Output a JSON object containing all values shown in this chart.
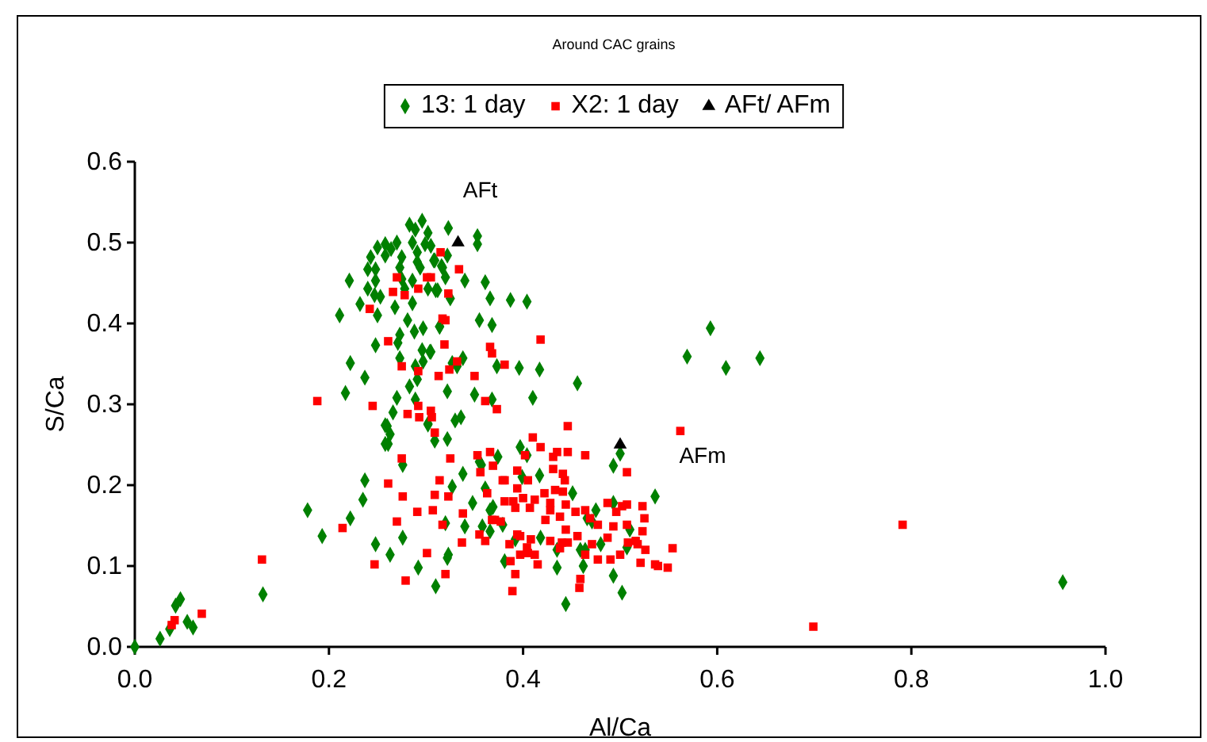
{
  "chart_data": {
    "type": "scatter",
    "title": "Around CAC grains",
    "xlabel": "Al/Ca",
    "ylabel": "S/Ca",
    "legend": "top",
    "grid": false,
    "xlim": [
      0,
      1
    ],
    "ylim": [
      0,
      0.6
    ],
    "xticks": [
      {
        "value": 0,
        "label": "0.0"
      },
      {
        "value": 0.2,
        "label": "0.2"
      },
      {
        "value": 0.4,
        "label": "0.4"
      },
      {
        "value": 0.6,
        "label": "0.6"
      },
      {
        "value": 0.8,
        "label": "0.8"
      },
      {
        "value": 1,
        "label": "1.0"
      }
    ],
    "yticks": [
      {
        "value": 0,
        "label": "0.0"
      },
      {
        "value": 0.1,
        "label": "0.1"
      },
      {
        "value": 0.2,
        "label": "0.2"
      },
      {
        "value": 0.3,
        "label": "0.3"
      },
      {
        "value": 0.4,
        "label": "0.4"
      },
      {
        "value": 0.5,
        "label": "0.5"
      },
      {
        "value": 0.6,
        "label": "0.6"
      }
    ],
    "annotations": [
      {
        "text": "AFt",
        "x": 0.333,
        "y": 0.5
      },
      {
        "text": "AFm",
        "x": 0.5,
        "y": 0.25
      }
    ],
    "series": [
      {
        "name": "13: 1 day",
        "color": "#008000",
        "marker": "diamond",
        "x": [
          0.296,
          0.283,
          0.289,
          0.302,
          0.27,
          0.286,
          0.299,
          0.258,
          0.25,
          0.264,
          0.291,
          0.243,
          0.258,
          0.275,
          0.308,
          0.291,
          0.273,
          0.24,
          0.248,
          0.294,
          0.316,
          0.275,
          0.286,
          0.248,
          0.221,
          0.278,
          0.24,
          0.302,
          0.31,
          0.247,
          0.253,
          0.286,
          0.232,
          0.25,
          0.268,
          0.211,
          0.281,
          0.297,
          0.314,
          0.288,
          0.273,
          0.271,
          0.248,
          0.296,
          0.304,
          0.273,
          0.297,
          0.222,
          0.289,
          0.237,
          0.291,
          0.283,
          0.217,
          0.27,
          0.289,
          0.266,
          0.258,
          0.302,
          0.323,
          0.353,
          0.353,
          0.305,
          0.322,
          0.309,
          0.317,
          0.32,
          0.34,
          0.312,
          0.361,
          0.366,
          0.387,
          0.404,
          0.325,
          0.355,
          0.314,
          0.368,
          0.593,
          0.569,
          0.609,
          0.644,
          0.305,
          0.338,
          0.327,
          0.332,
          0.373,
          0.396,
          0.417,
          0.456,
          0.322,
          0.35,
          0.368,
          0.41,
          0.33,
          0.336,
          0.956,
          0,
          0.026,
          0.036,
          0.042,
          0.047,
          0.054,
          0.06,
          0.132,
          0.178,
          0.193,
          0.222,
          0.235,
          0.237,
          0.248,
          0.263,
          0.276,
          0.292,
          0.31,
          0.276,
          0.258,
          0.261,
          0.263,
          0.26,
          0.302,
          0.309,
          0.322,
          0.397,
          0.404,
          0.355,
          0.357,
          0.374,
          0.5,
          0.493,
          0.338,
          0.399,
          0.417,
          0.327,
          0.361,
          0.451,
          0.536,
          0.348,
          0.366,
          0.369,
          0.475,
          0.493,
          0.32,
          0.34,
          0.358,
          0.379,
          0.466,
          0.471,
          0.51,
          0.366,
          0.392,
          0.418,
          0.48,
          0.507,
          0.435,
          0.459,
          0.464,
          0.323,
          0.322,
          0.381,
          0.435,
          0.462,
          0.493,
          0.502,
          0.444
        ],
        "values": [
          0.527,
          0.522,
          0.516,
          0.512,
          0.5,
          0.5,
          0.498,
          0.498,
          0.494,
          0.492,
          0.488,
          0.482,
          0.484,
          0.482,
          0.478,
          0.476,
          0.469,
          0.467,
          0.467,
          0.469,
          0.471,
          0.455,
          0.453,
          0.453,
          0.453,
          0.443,
          0.443,
          0.443,
          0.441,
          0.435,
          0.433,
          0.425,
          0.424,
          0.41,
          0.42,
          0.41,
          0.404,
          0.394,
          0.396,
          0.39,
          0.386,
          0.376,
          0.373,
          0.367,
          0.365,
          0.357,
          0.353,
          0.351,
          0.347,
          0.333,
          0.331,
          0.322,
          0.314,
          0.308,
          0.306,
          0.29,
          0.274,
          0.276,
          0.518,
          0.508,
          0.498,
          0.496,
          0.484,
          0.478,
          0.469,
          0.457,
          0.453,
          0.441,
          0.451,
          0.431,
          0.429,
          0.427,
          0.431,
          0.404,
          0.396,
          0.398,
          0.394,
          0.359,
          0.345,
          0.357,
          0.365,
          0.357,
          0.351,
          0.347,
          0.347,
          0.345,
          0.343,
          0.326,
          0.316,
          0.312,
          0.306,
          0.308,
          0.28,
          0.284,
          0.08,
          0,
          0.01,
          0.022,
          0.051,
          0.059,
          0.031,
          0.024,
          0.065,
          0.169,
          0.137,
          0.159,
          0.182,
          0.206,
          0.127,
          0.114,
          0.135,
          0.098,
          0.075,
          0.225,
          0.251,
          0.251,
          0.263,
          0.273,
          0.275,
          0.255,
          0.257,
          0.247,
          0.237,
          0.229,
          0.225,
          0.235,
          0.239,
          0.224,
          0.214,
          0.21,
          0.212,
          0.198,
          0.196,
          0.19,
          0.186,
          0.178,
          0.169,
          0.173,
          0.169,
          0.178,
          0.153,
          0.149,
          0.149,
          0.151,
          0.159,
          0.155,
          0.145,
          0.143,
          0.133,
          0.135,
          0.127,
          0.123,
          0.12,
          0.12,
          0.12,
          0.114,
          0.11,
          0.106,
          0.098,
          0.1,
          0.088,
          0.067,
          0.053
        ]
      },
      {
        "name": "X2: 1 day",
        "color": "#ff0000",
        "marker": "square",
        "x": [
          0.315,
          0.27,
          0.301,
          0.305,
          0.266,
          0.278,
          0.292,
          0.242,
          0.317,
          0.261,
          0.319,
          0.275,
          0.292,
          0.313,
          0.188,
          0.245,
          0.292,
          0.281,
          0.305,
          0.334,
          0.323,
          0.32,
          0.418,
          0.366,
          0.368,
          0.332,
          0.381,
          0.324,
          0.35,
          0.361,
          0.373,
          0.446,
          0.791,
          0.699,
          0.041,
          0.038,
          0.069,
          0.131,
          0.214,
          0.247,
          0.261,
          0.27,
          0.276,
          0.275,
          0.279,
          0.291,
          0.301,
          0.307,
          0.309,
          0.314,
          0.317,
          0.309,
          0.306,
          0.293,
          0.41,
          0.418,
          0.435,
          0.446,
          0.431,
          0.464,
          0.562,
          0.325,
          0.353,
          0.366,
          0.402,
          0.369,
          0.356,
          0.394,
          0.431,
          0.507,
          0.441,
          0.379,
          0.381,
          0.405,
          0.443,
          0.394,
          0.323,
          0.363,
          0.422,
          0.433,
          0.441,
          0.381,
          0.39,
          0.4,
          0.412,
          0.428,
          0.444,
          0.487,
          0.502,
          0.507,
          0.523,
          0.392,
          0.407,
          0.428,
          0.454,
          0.464,
          0.496,
          0.338,
          0.423,
          0.438,
          0.469,
          0.525,
          0.368,
          0.371,
          0.377,
          0.477,
          0.493,
          0.507,
          0.444,
          0.523,
          0.355,
          0.394,
          0.397,
          0.408,
          0.428,
          0.44,
          0.446,
          0.456,
          0.471,
          0.487,
          0.508,
          0.516,
          0.518,
          0.361,
          0.337,
          0.386,
          0.404,
          0.438,
          0.464,
          0.477,
          0.49,
          0.5,
          0.526,
          0.554,
          0.521,
          0.536,
          0.539,
          0.549,
          0.387,
          0.397,
          0.405,
          0.412,
          0.415,
          0.392,
          0.459,
          0.458,
          0.389,
          0.32
        ],
        "values": [
          0.488,
          0.457,
          0.457,
          0.457,
          0.439,
          0.435,
          0.443,
          0.418,
          0.406,
          0.378,
          0.374,
          0.347,
          0.341,
          0.335,
          0.304,
          0.298,
          0.298,
          0.288,
          0.292,
          0.467,
          0.437,
          0.404,
          0.38,
          0.371,
          0.363,
          0.353,
          0.349,
          0.343,
          0.335,
          0.304,
          0.294,
          0.273,
          0.151,
          0.025,
          0.033,
          0.027,
          0.041,
          0.108,
          0.147,
          0.102,
          0.202,
          0.155,
          0.186,
          0.233,
          0.082,
          0.167,
          0.116,
          0.169,
          0.188,
          0.206,
          0.151,
          0.265,
          0.284,
          0.284,
          0.259,
          0.247,
          0.241,
          0.241,
          0.235,
          0.237,
          0.267,
          0.233,
          0.237,
          0.241,
          0.237,
          0.224,
          0.216,
          0.218,
          0.22,
          0.216,
          0.214,
          0.206,
          0.206,
          0.206,
          0.206,
          0.196,
          0.186,
          0.19,
          0.19,
          0.194,
          0.192,
          0.18,
          0.18,
          0.184,
          0.182,
          0.178,
          0.176,
          0.178,
          0.174,
          0.176,
          0.174,
          0.172,
          0.172,
          0.169,
          0.167,
          0.169,
          0.167,
          0.165,
          0.157,
          0.161,
          0.159,
          0.159,
          0.157,
          0.157,
          0.155,
          0.151,
          0.149,
          0.151,
          0.145,
          0.143,
          0.139,
          0.139,
          0.137,
          0.133,
          0.131,
          0.129,
          0.129,
          0.137,
          0.127,
          0.135,
          0.129,
          0.131,
          0.127,
          0.131,
          0.129,
          0.127,
          0.123,
          0.122,
          0.114,
          0.108,
          0.108,
          0.114,
          0.12,
          0.122,
          0.104,
          0.102,
          0.1,
          0.098,
          0.106,
          0.114,
          0.116,
          0.114,
          0.102,
          0.09,
          0.084,
          0.073,
          0.069,
          0.09
        ]
      },
      {
        "name": "AFt/ AFm",
        "color": "#000000",
        "marker": "triangle",
        "x": [
          0.333,
          0.5
        ],
        "values": [
          0.5,
          0.25
        ]
      }
    ]
  }
}
